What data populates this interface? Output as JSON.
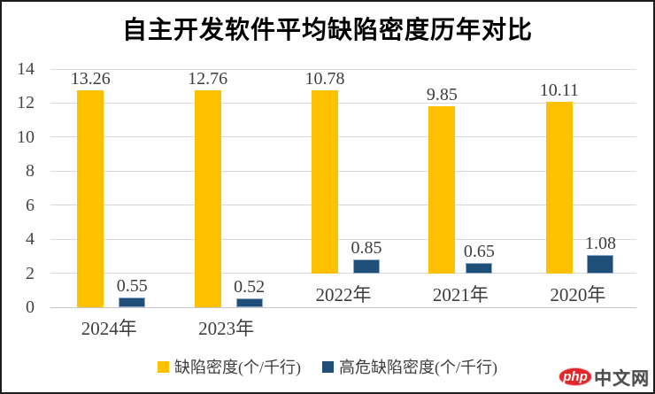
{
  "chart_data": {
    "type": "bar",
    "title": "自主开发软件平均缺陷密度历年对比",
    "categories": [
      "2024年",
      "2023年",
      "2022年",
      "2021年",
      "2020年"
    ],
    "series": [
      {
        "key": "defect-density",
        "name": "缺陷密度(个/千行)",
        "color": "#FFC000",
        "values": [
          13.26,
          12.76,
          10.78,
          9.85,
          10.11
        ]
      },
      {
        "key": "high-risk-defect-density",
        "name": "高危缺陷密度(个/千行)",
        "color": "#1F4E79",
        "values": [
          0.55,
          0.52,
          0.85,
          0.65,
          1.08
        ]
      }
    ],
    "ylim": [
      0,
      14
    ],
    "yticks": [
      0,
      2,
      4,
      6,
      8,
      10,
      12,
      14
    ],
    "grid": true,
    "legend_position": "bottom",
    "value_label_decimals": 2
  },
  "colors": {
    "gridline": "#d9d9d9",
    "axis_text": "#3d3d3d",
    "border": "#1c1c1c"
  },
  "watermark": {
    "logo": "php",
    "text": "中文网",
    "logo_color": "#e0282c"
  }
}
